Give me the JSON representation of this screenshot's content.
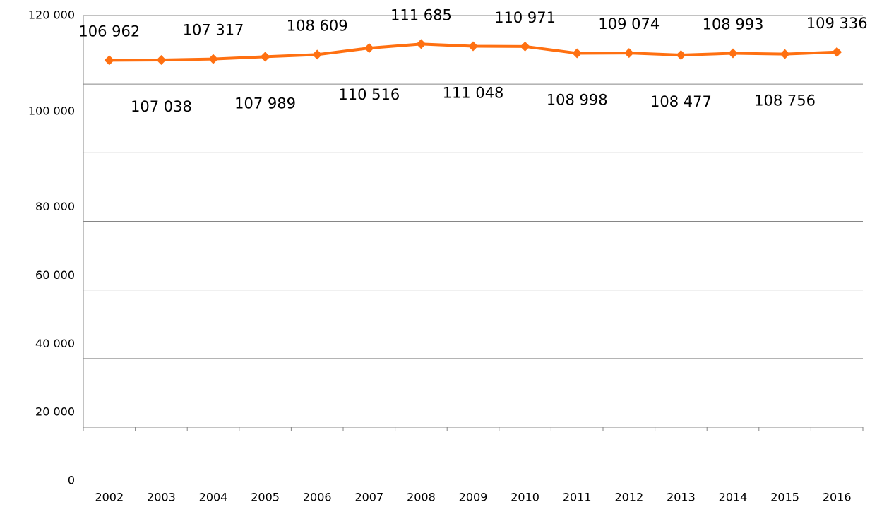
{
  "chart_data": {
    "type": "line",
    "categories": [
      "2002",
      "2003",
      "2004",
      "2005",
      "2006",
      "2007",
      "2008",
      "2009",
      "2010",
      "2011",
      "2012",
      "2013",
      "2014",
      "2015",
      "2016"
    ],
    "series": [
      {
        "name": null,
        "color": "#ff7011",
        "values": [
          106962,
          107038,
          107317,
          107989,
          108609,
          110516,
          111685,
          111048,
          110971,
          108998,
          109074,
          108477,
          108993,
          108756,
          109336
        ],
        "value_labels": [
          "106 962",
          "107 038",
          "107 317",
          "107 989",
          "108 609",
          "110 516",
          "111 685",
          "111 048",
          "110 971",
          "108 998",
          "109 074",
          "108 477",
          "108 993",
          "108 756",
          "109 336"
        ]
      }
    ],
    "ylim": [
      0,
      120000
    ],
    "yticks": [
      0,
      {
        "value": 20000,
        "label": "20 000"
      },
      {
        "value": 40000,
        "label": "40 000"
      },
      {
        "value": 60000,
        "label": "60 000"
      },
      {
        "value": 80000,
        "label": "80 000"
      },
      {
        "value": 100000,
        "label": "100 000"
      },
      {
        "value": 120000,
        "label": "120 000"
      }
    ],
    "grid": true
  }
}
